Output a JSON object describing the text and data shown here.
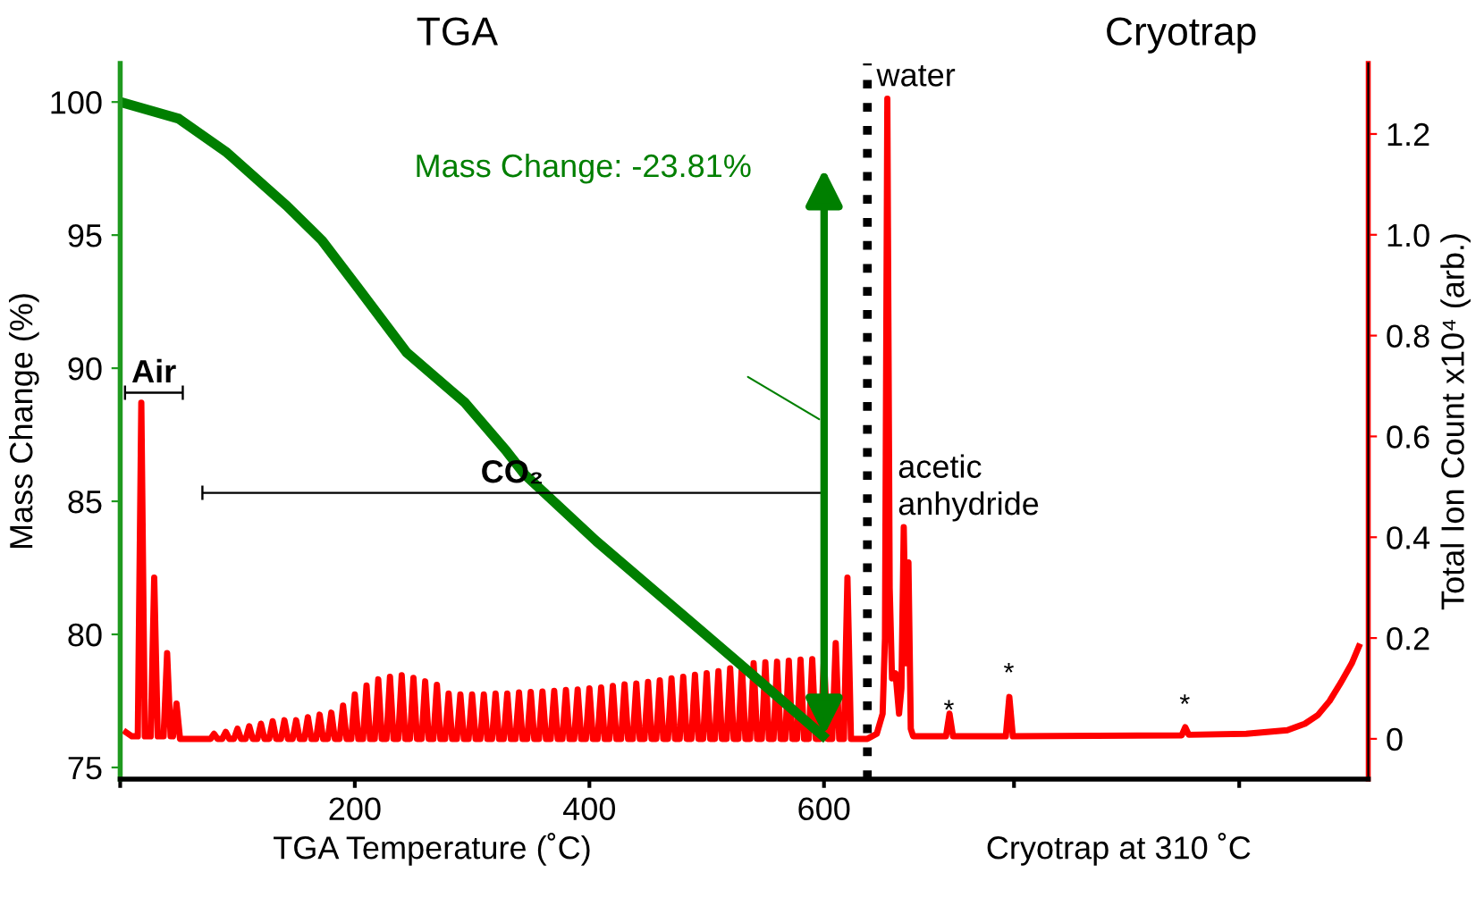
{
  "chart_data": {
    "type": "line",
    "ylabel": "Mass Change (%)",
    "y2label": "Total Ion Count x10⁴ (arb.)",
    "xlabel": "TGA Temperature (˚C)",
    "xlim": [
      0,
      1064
    ],
    "xticks": [
      {
        "value": 0,
        "label": null
      },
      200,
      400,
      600,
      {
        "value": 762,
        "label": null
      },
      {
        "value": 954,
        "label": null
      }
    ],
    "ylim": [
      74.56,
      101.45
    ],
    "yticks": [
      75,
      80,
      85,
      90,
      95,
      100
    ],
    "y2lim": [
      -0.08,
      1.34
    ],
    "y2ticks": [
      0,
      0.2,
      0.4,
      0.6,
      0.8,
      {
        "value": 1,
        "label": "1.0"
      },
      1.2
    ],
    "grid": false,
    "series": [
      {
        "axis": "y",
        "color": "#007f00",
        "x": [
          0,
          50,
          91,
          142,
          172,
          203,
          244,
          294,
          329,
          345,
          406,
          528,
          599
        ],
        "values": [
          100,
          99.37,
          98.1,
          96.1,
          94.8,
          93.0,
          90.6,
          88.7,
          86.9,
          86.0,
          83.5,
          78.9,
          76.19
        ]
      },
      {
        "axis": "y2",
        "color": "#ff0000",
        "x": [
          5,
          10,
          15,
          18,
          21,
          26,
          29,
          32,
          37,
          40,
          43,
          45,
          48,
          51,
          77,
          80,
          83,
          87,
          90,
          93,
          97,
          100,
          103,
          107,
          110,
          113,
          117,
          120,
          123,
          127,
          130,
          133,
          137,
          140,
          143,
          147,
          150,
          153,
          157,
          160,
          163,
          167,
          170,
          173,
          177,
          180,
          183,
          187,
          190,
          193,
          197,
          200,
          203,
          207,
          210,
          213,
          217,
          220,
          223,
          227,
          230,
          233,
          237,
          240,
          243,
          247,
          250,
          253,
          257,
          260,
          263,
          267,
          270,
          273,
          277,
          280,
          283,
          287,
          290,
          293,
          297,
          300,
          303,
          307,
          310,
          313,
          317,
          320,
          323,
          327,
          330,
          333,
          337,
          340,
          343,
          347,
          350,
          353,
          357,
          360,
          363,
          367,
          370,
          373,
          377,
          380,
          383,
          387,
          390,
          393,
          397,
          400,
          403,
          407,
          410,
          413,
          417,
          420,
          423,
          427,
          430,
          433,
          437,
          440,
          443,
          447,
          450,
          453,
          457,
          460,
          463,
          467,
          470,
          473,
          477,
          480,
          483,
          487,
          490,
          493,
          497,
          500,
          503,
          507,
          510,
          513,
          517,
          520,
          523,
          527,
          530,
          533,
          537,
          540,
          543,
          547,
          550,
          553,
          557,
          560,
          563,
          567,
          570,
          573,
          577,
          580,
          583,
          587,
          590,
          593,
          597,
          600,
          603,
          607,
          610,
          613,
          617,
          620,
          623,
          637,
          645,
          650,
          652,
          654,
          656,
          658,
          661,
          664,
          666,
          668,
          670,
          672,
          674,
          676,
          704,
          707,
          710,
          755,
          758,
          761,
          905,
          908,
          911,
          960,
          995,
          1010,
          1021,
          1031,
          1041,
          1050,
          1056
        ],
        "values": [
          0.013,
          0.005,
          0.005,
          0.667,
          0.005,
          0.005,
          0.32,
          0.005,
          0.005,
          0.17,
          0.005,
          0.005,
          0.07,
          0.0,
          0.0,
          0.01,
          0.0,
          0.0,
          0.014,
          0.0,
          0.0,
          0.02,
          0.0,
          0.0,
          0.025,
          0.0,
          0.0,
          0.03,
          0.0,
          0.0,
          0.035,
          0.0,
          0.0,
          0.037,
          0.0,
          0.0,
          0.037,
          0.0,
          0.0,
          0.043,
          0.0,
          0.0,
          0.048,
          0.0,
          0.0,
          0.052,
          0.0,
          0.0,
          0.066,
          0.0,
          0.0,
          0.088,
          0.0,
          0.0,
          0.106,
          0.0,
          0.0,
          0.118,
          0.0,
          0.0,
          0.123,
          0.0,
          0.0,
          0.126,
          0.0,
          0.0,
          0.121,
          0.0,
          0.0,
          0.114,
          0.0,
          0.0,
          0.107,
          0.0,
          0.0,
          0.09,
          0.0,
          0.0,
          0.088,
          0.0,
          0.0,
          0.088,
          0.0,
          0.0,
          0.088,
          0.0,
          0.0,
          0.09,
          0.0,
          0.0,
          0.09,
          0.0,
          0.0,
          0.092,
          0.0,
          0.0,
          0.093,
          0.0,
          0.0,
          0.094,
          0.0,
          0.0,
          0.095,
          0.0,
          0.0,
          0.097,
          0.0,
          0.0,
          0.098,
          0.0,
          0.0,
          0.1,
          0.0,
          0.0,
          0.102,
          0.0,
          0.0,
          0.105,
          0.0,
          0.0,
          0.108,
          0.0,
          0.0,
          0.11,
          0.0,
          0.0,
          0.113,
          0.0,
          0.0,
          0.116,
          0.0,
          0.0,
          0.12,
          0.0,
          0.0,
          0.123,
          0.0,
          0.0,
          0.127,
          0.0,
          0.0,
          0.13,
          0.0,
          0.0,
          0.134,
          0.0,
          0.0,
          0.14,
          0.0,
          0.0,
          0.146,
          0.0,
          0.0,
          0.15,
          0.0,
          0.0,
          0.152,
          0.0,
          0.0,
          0.153,
          0.0,
          0.0,
          0.155,
          0.0,
          0.0,
          0.157,
          0.0,
          0.0,
          0.158,
          0.0,
          0.0,
          0.16,
          0.0,
          0.0,
          0.19,
          0.0,
          0.0,
          0.32,
          0.0,
          0.0,
          0.01,
          0.05,
          0.2,
          1.27,
          0.3,
          0.12,
          0.13,
          0.05,
          0.1,
          0.42,
          0.15,
          0.35,
          0.02,
          0.005,
          0.005,
          0.05,
          0.005,
          0.005,
          0.083,
          0.005,
          0.007,
          0.023,
          0.008,
          0.01,
          0.017,
          0.03,
          0.047,
          0.075,
          0.113,
          0.15,
          0.183
        ]
      }
    ],
    "ref_lines": [
      {
        "axis": "x",
        "value": 637,
        "color": "#000000",
        "line_style": "dotted"
      }
    ],
    "annotations": [
      "TGA",
      "Cryotrap",
      "Cryotrap at 310 ˚C",
      "Air",
      "CO₂",
      "Mass Change: -23.81%",
      "water",
      "acetic\nanhydride",
      "*",
      "*",
      "*"
    ]
  }
}
